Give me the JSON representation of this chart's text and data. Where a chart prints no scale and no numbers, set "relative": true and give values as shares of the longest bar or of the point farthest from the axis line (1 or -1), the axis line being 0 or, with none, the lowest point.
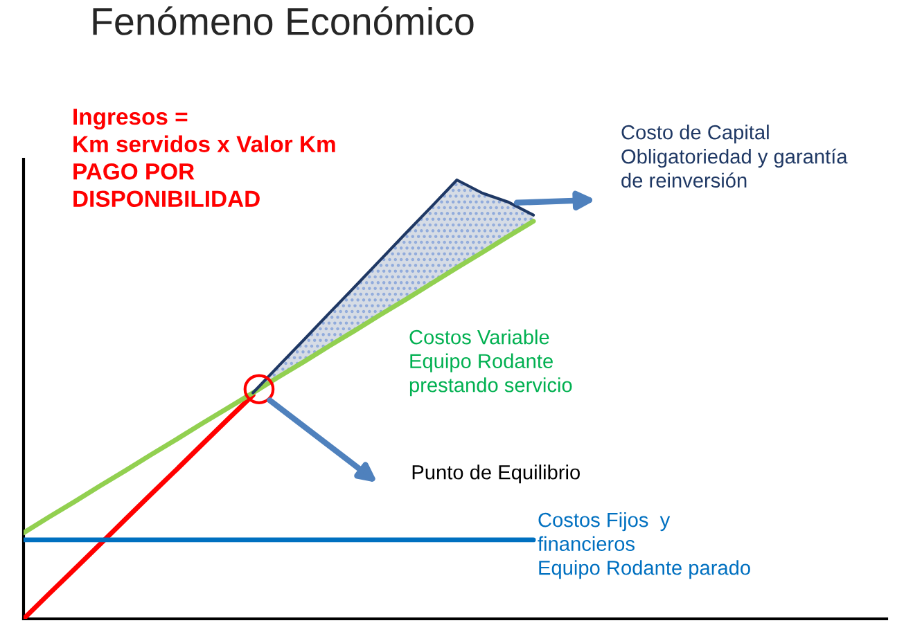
{
  "chart_data": {
    "type": "line",
    "title": "Fenómeno Económico",
    "relative": true,
    "legend": false,
    "marker": "none",
    "line_style": "solid",
    "categories": [
      null,
      null,
      null,
      null,
      null,
      null,
      null,
      null,
      null,
      null,
      null,
      null,
      null,
      null,
      null,
      null,
      null,
      null,
      null,
      null,
      null
    ],
    "series": [
      {
        "name": "Ingresos =\nKm servidos x Valor Km\nPAGO POR\nDISPONIBILIDAD",
        "color": "#ff0000",
        "values": [
          0,
          0.057,
          0.113,
          0.17,
          0.227,
          0.284,
          0.34,
          0.397,
          0.454,
          0.51,
          null,
          null,
          null,
          null,
          null,
          null,
          null,
          null,
          null,
          null,
          null
        ]
      },
      {
        "name": "Costos Variable\nEquipo Rodante\nprestando servicio",
        "color": "#92d050",
        "values": [
          0.196,
          0.232,
          0.267,
          0.303,
          0.338,
          0.374,
          0.409,
          0.445,
          0.48,
          0.515,
          0.551,
          0.586,
          0.622,
          0.657,
          0.693,
          0.728,
          0.764,
          0.8,
          0.835,
          0.871,
          0.906
        ]
      },
      {
        "name": "Costos Fijos  y\nfinancieros\nEquipo Rodante parado",
        "color": "#0070c0",
        "values": [
          0.18,
          0.18,
          0.18,
          0.18,
          0.18,
          0.18,
          0.18,
          0.18,
          0.18,
          0.18,
          0.18,
          0.18,
          0.18,
          0.18,
          0.18,
          0.18,
          0.18,
          0.18,
          0.18,
          0.18,
          0.18
        ]
      },
      {
        "name": "Costo de Capital\nObligatoriedad y garantía\nde reinversión",
        "color": "#1f3864",
        "values": [
          null,
          null,
          null,
          null,
          null,
          null,
          null,
          null,
          null,
          0.515,
          0.576,
          0.636,
          0.697,
          0.757,
          0.818,
          0.879,
          0.939,
          1.0,
          0.97,
          0.95,
          0.92
        ],
        "lower": [
          null,
          null,
          null,
          null,
          null,
          null,
          null,
          null,
          null,
          0.515,
          0.551,
          0.586,
          0.622,
          0.657,
          0.693,
          0.728,
          0.764,
          0.8,
          0.835,
          0.871,
          0.906
        ],
        "upper": [
          null,
          null,
          null,
          null,
          null,
          null,
          null,
          null,
          null,
          0.515,
          0.576,
          0.636,
          0.697,
          0.757,
          0.818,
          0.879,
          0.939,
          1.0,
          0.97,
          0.95,
          0.92
        ]
      }
    ],
    "annotations": [
      "Punto de Equilibrio"
    ]
  }
}
